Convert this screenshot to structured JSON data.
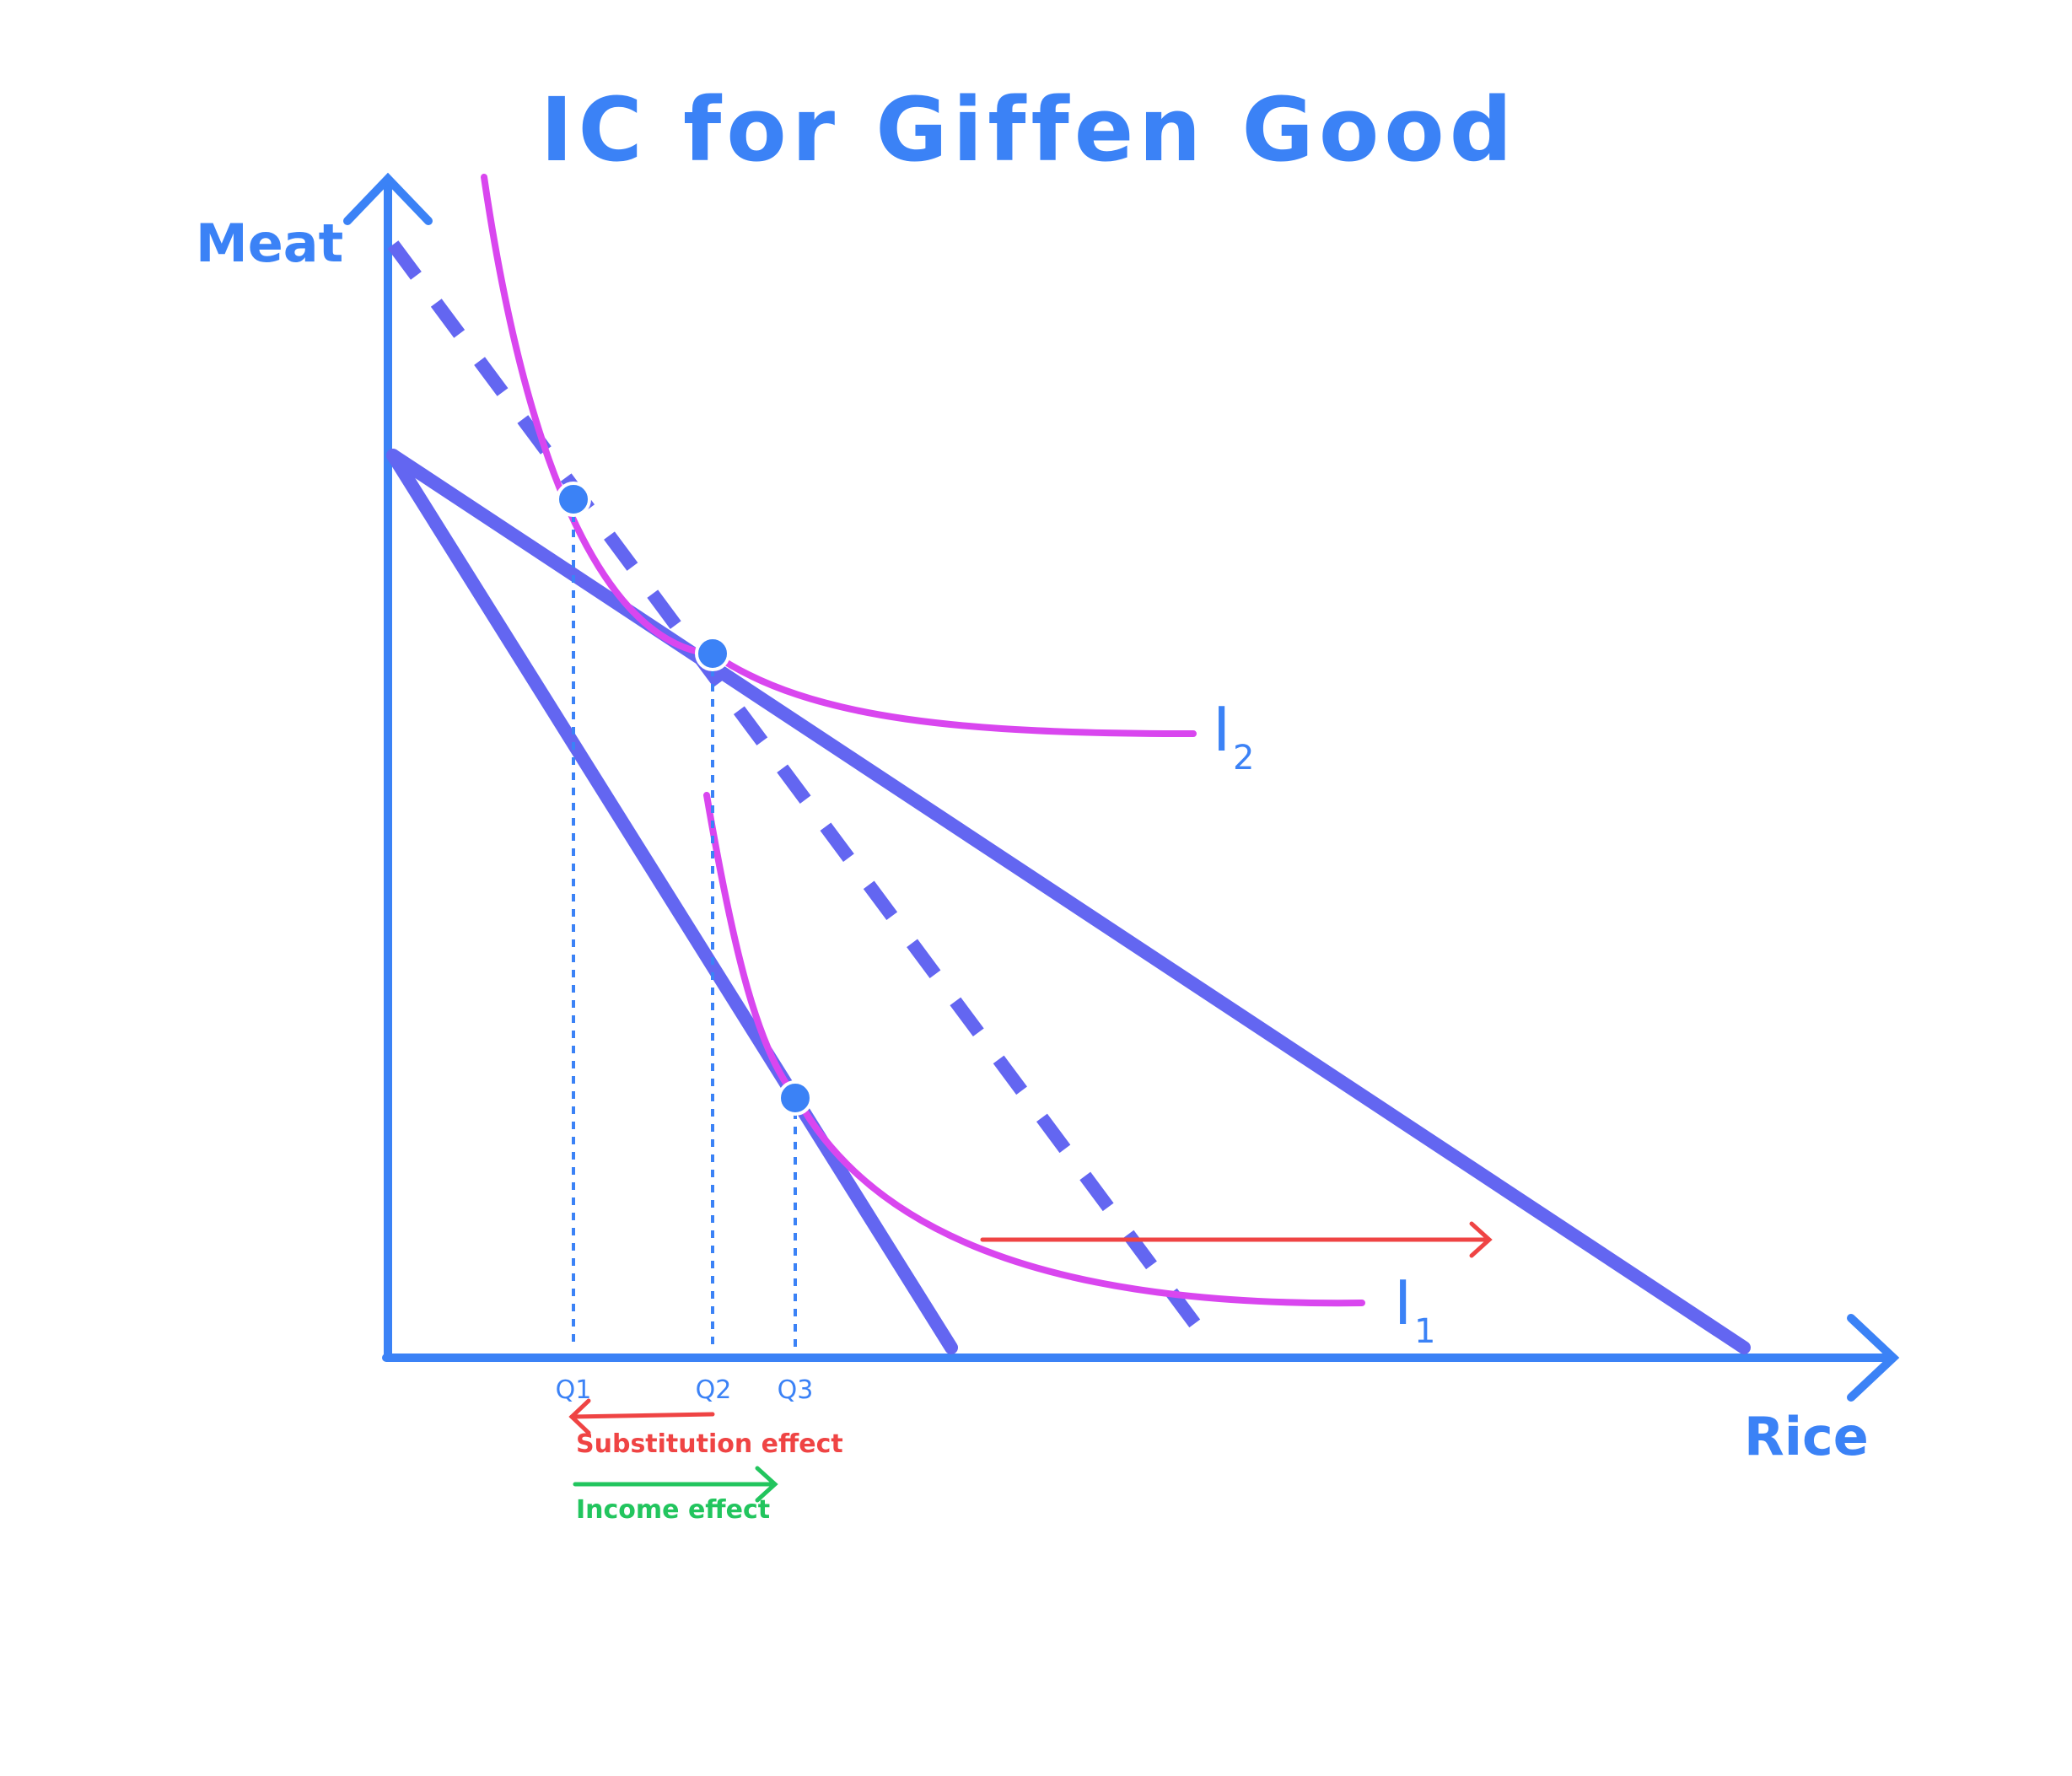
{
  "title": "IC for Giffen Good",
  "axes": {
    "y_label": "Meat",
    "x_label": "Rice"
  },
  "indifference_curves": [
    {
      "letter": "I",
      "subscript": "2"
    },
    {
      "letter": "I",
      "subscript": "1"
    }
  ],
  "quantity_ticks": [
    "Q1",
    "Q2",
    "Q3"
  ],
  "effects": {
    "substitution": "Substitution effect",
    "income": "Income effect"
  },
  "colors": {
    "axis": "#3b82f6",
    "budget_line": "#6366f1",
    "indifference_curve": "#d946ef",
    "point": "#3b82f6",
    "substitution_arrow": "#ef4444",
    "income_arrow": "#22c55e"
  }
}
